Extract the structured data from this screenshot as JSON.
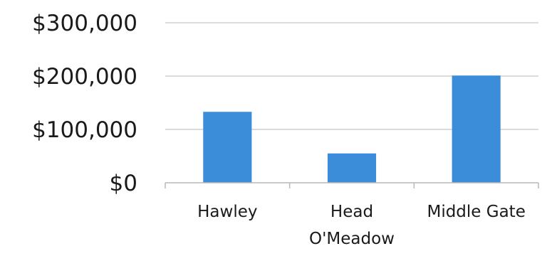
{
  "chart_data": {
    "type": "bar",
    "title": "",
    "xlabel": "",
    "ylabel": "",
    "categories": [
      "Hawley",
      "Head O'Meadow",
      "Middle Gate"
    ],
    "category_lines": [
      [
        "Hawley"
      ],
      [
        "Head",
        "O'Meadow"
      ],
      [
        "Middle Gate"
      ]
    ],
    "values": [
      133000,
      55000,
      201000
    ],
    "ylim": [
      0,
      300000
    ],
    "y_ticks": [
      0,
      100000,
      200000,
      300000
    ],
    "y_tick_labels": [
      "$0",
      "$100,000",
      "$200,000",
      "$300,000"
    ],
    "grid": true,
    "legend": "none",
    "bar_color": "#3c8dd9"
  }
}
